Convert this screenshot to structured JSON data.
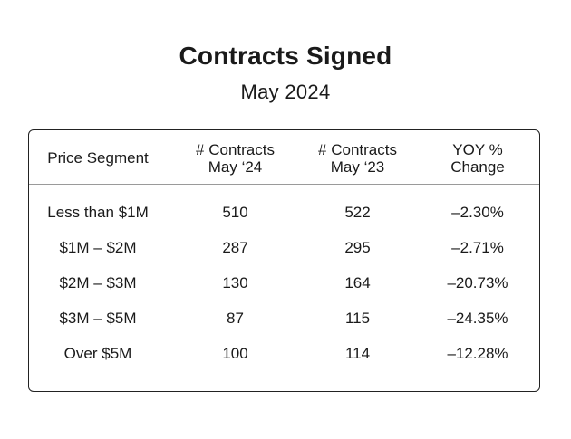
{
  "title": "Contracts Signed",
  "subtitle": "May 2024",
  "table": {
    "headers": {
      "segment": "Price Segment",
      "may24_line1": "# Contracts",
      "may24_line2": "May ‘24",
      "may23_line1": "# Contracts",
      "may23_line2": "May ‘23",
      "yoy_line1": "YOY %",
      "yoy_line2": "Change"
    },
    "rows": [
      {
        "segment": "Less than $1M",
        "may24": "510",
        "may23": "522",
        "yoy": "–2.30%"
      },
      {
        "segment": "$1M – $2M",
        "may24": "287",
        "may23": "295",
        "yoy": "–2.71%"
      },
      {
        "segment": "$2M – $3M",
        "may24": "130",
        "may23": "164",
        "yoy": "–20.73%"
      },
      {
        "segment": "$3M – $5M",
        "may24": "87",
        "may23": "115",
        "yoy": "–24.35%"
      },
      {
        "segment": "Over $5M",
        "may24": "100",
        "may23": "114",
        "yoy": "–12.28%"
      }
    ]
  }
}
